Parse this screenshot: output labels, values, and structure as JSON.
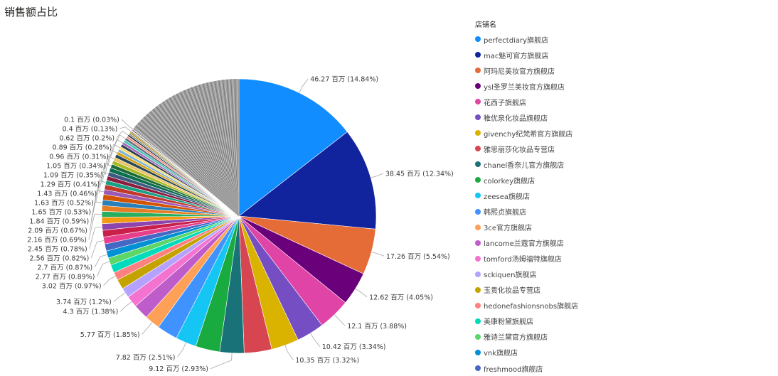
{
  "title": "销售额占比",
  "legend": {
    "title": "店铺名",
    "items": [
      {
        "label": "perfectdiary旗舰店",
        "color": "#118DFF"
      },
      {
        "label": "mac魅可官方旗舰店",
        "color": "#12239E"
      },
      {
        "label": "阿玛尼美妆官方旗舰店",
        "color": "#E66C37"
      },
      {
        "label": "ysl圣罗兰美妆官方旗舰店",
        "color": "#6B007B"
      },
      {
        "label": "花西子旗舰店",
        "color": "#E044A7"
      },
      {
        "label": "稚优泉化妆品旗舰店",
        "color": "#744EC2"
      },
      {
        "label": "givenchy纪梵希官方旗舰店",
        "color": "#D9B300"
      },
      {
        "label": "雅思丽莎化妆品专营店",
        "color": "#D64550"
      },
      {
        "label": "chanel香奈儿官方旗舰店",
        "color": "#197278"
      },
      {
        "label": "colorkey旗舰店",
        "color": "#1AAB40"
      },
      {
        "label": "zeesea旗舰店",
        "color": "#15C6F4"
      },
      {
        "label": "韩熙贞旗舰店",
        "color": "#4092FF"
      },
      {
        "label": "3ce官方旗舰店",
        "color": "#FFA058"
      },
      {
        "label": "lancome兰蔻官方旗舰店",
        "color": "#BE5DC9"
      },
      {
        "label": "tomford汤姆福特旗舰店",
        "color": "#F472D0"
      },
      {
        "label": "sckiquen旗舰店",
        "color": "#B5A1FF"
      },
      {
        "label": "玉贵化妆品专营店",
        "color": "#C4A200"
      },
      {
        "label": "hedonefashionsnobs旗舰店",
        "color": "#FF8080"
      },
      {
        "label": "美康粉黛旗舰店",
        "color": "#00DBBC"
      },
      {
        "label": "雅诗兰黛官方旗舰店",
        "color": "#5BD667"
      },
      {
        "label": "vnk旗舰店",
        "color": "#0091D5"
      },
      {
        "label": "freshmood旗舰店",
        "color": "#4668C5"
      }
    ]
  },
  "chart_data": {
    "type": "pie",
    "title": "销售额占比",
    "legend_title": "店铺名",
    "legend_position": "right",
    "unit": "百万",
    "slices": [
      {
        "name": "perfectdiary旗舰店",
        "value": 46.27,
        "percent": 14.84,
        "label": "46.27 百万 (14.84%)",
        "color": "#118DFF"
      },
      {
        "name": "mac魅可官方旗舰店",
        "value": 38.45,
        "percent": 12.34,
        "label": "38.45 百万 (12.34%)",
        "color": "#12239E"
      },
      {
        "name": "阿玛尼美妆官方旗舰店",
        "value": 17.26,
        "percent": 5.54,
        "label": "17.26 百万 (5.54%)",
        "color": "#E66C37"
      },
      {
        "name": "ysl圣罗兰美妆官方旗舰店",
        "value": 12.62,
        "percent": 4.05,
        "label": "12.62 百万 (4.05%)",
        "color": "#6B007B"
      },
      {
        "name": "花西子旗舰店",
        "value": 12.1,
        "percent": 3.88,
        "label": "12.1 百万 (3.88%)",
        "color": "#E044A7"
      },
      {
        "name": "稚优泉化妆品旗舰店",
        "value": 10.42,
        "percent": 3.34,
        "label": "10.42 百万 (3.34%)",
        "color": "#744EC2"
      },
      {
        "name": "givenchy纪梵希官方旗舰店",
        "value": 10.35,
        "percent": 3.32,
        "label": "10.35 百万 (3.32%)",
        "color": "#D9B300"
      },
      {
        "name": "雅思丽莎化妆品专营店",
        "value": 10.35,
        "percent": 3.32,
        "label": "",
        "color": "#D64550"
      },
      {
        "name": "chanel香奈儿官方旗舰店",
        "value": 9.12,
        "percent": 2.93,
        "label": "9.12 百万 (2.93%)",
        "color": "#197278"
      },
      {
        "name": "colorkey旗舰店",
        "value": 9.12,
        "percent": 2.93,
        "label": "",
        "color": "#1AAB40"
      },
      {
        "name": "zeesea旗舰店",
        "value": 7.82,
        "percent": 2.51,
        "label": "7.82 百万 (2.51%)",
        "color": "#15C6F4"
      },
      {
        "name": "韩熙贞旗舰店",
        "value": 7.82,
        "percent": 2.51,
        "label": "",
        "color": "#4092FF"
      },
      {
        "name": "3ce官方旗舰店",
        "value": 5.77,
        "percent": 1.85,
        "label": "5.77 百万 (1.85%)",
        "color": "#FFA058"
      },
      {
        "name": "lancome兰蔻官方旗舰店",
        "value": 5.77,
        "percent": 1.85,
        "label": "",
        "color": "#BE5DC9"
      },
      {
        "name": "tomford汤姆福特旗舰店",
        "value": 4.3,
        "percent": 1.38,
        "label": "4.3 百万 (1.38%)",
        "color": "#F472D0"
      },
      {
        "name": "sckiquen旗舰店",
        "value": 3.74,
        "percent": 1.2,
        "label": "3.74 百万 (1.2%)",
        "color": "#B5A1FF"
      },
      {
        "name": "玉贵化妆品专营店",
        "value": 3.74,
        "percent": 1.2,
        "label": "",
        "color": "#C4A200"
      },
      {
        "name": "hedonefashionsnobs旗舰店",
        "value": 3.02,
        "percent": 0.97,
        "label": "3.02 百万 (0.97%)",
        "color": "#FF8080"
      },
      {
        "name": "美康粉黛旗舰店",
        "value": 3.02,
        "percent": 0.97,
        "label": "",
        "color": "#00DBBC"
      },
      {
        "name": "雅诗兰黛官方旗舰店",
        "value": 2.77,
        "percent": 0.89,
        "label": "2.77 百万 (0.89%)",
        "color": "#5BD667"
      },
      {
        "name": "vnk旗舰店",
        "value": 2.7,
        "percent": 0.87,
        "label": "2.7 百万 (0.87%)",
        "color": "#0091D5"
      },
      {
        "name": "freshmood旗舰店",
        "value": 2.7,
        "percent": 0.87,
        "label": "",
        "color": "#4668C5"
      },
      {
        "name": "",
        "value": 2.56,
        "percent": 0.82,
        "label": "2.56 百万 (0.82%)",
        "color": "#E83F8C"
      },
      {
        "name": "",
        "value": 2.56,
        "percent": 0.82,
        "label": "",
        "color": "#C91F4A"
      },
      {
        "name": "",
        "value": 2.45,
        "percent": 0.78,
        "label": "2.45 百万 (0.78%)",
        "color": "#8E44AD"
      },
      {
        "name": "",
        "value": 2.45,
        "percent": 0.78,
        "label": "",
        "color": "#F39C12"
      },
      {
        "name": "",
        "value": 2.16,
        "percent": 0.69,
        "label": "2.16 百万 (0.69%)",
        "color": "#27AE60"
      },
      {
        "name": "",
        "value": 2.16,
        "percent": 0.69,
        "label": "",
        "color": "#E67E22"
      },
      {
        "name": "",
        "value": 2.09,
        "percent": 0.67,
        "label": "2.09 百万 (0.67%)",
        "color": "#2980B9"
      },
      {
        "name": "",
        "value": 2.09,
        "percent": 0.67,
        "label": "",
        "color": "#D35400"
      },
      {
        "name": "",
        "value": 1.84,
        "percent": 0.59,
        "label": "1.84 百万 (0.59%)",
        "color": "#9B59B6"
      },
      {
        "name": "",
        "value": 1.84,
        "percent": 0.59,
        "label": "",
        "color": "#C0392B"
      },
      {
        "name": "",
        "value": 1.65,
        "percent": 0.53,
        "label": "1.65 百万 (0.53%)",
        "color": "#16A085"
      },
      {
        "name": "",
        "value": 1.65,
        "percent": 0.53,
        "label": "",
        "color": "#8B1E3F"
      },
      {
        "name": "",
        "value": 1.63,
        "percent": 0.52,
        "label": "1.63 百万 (0.52%)",
        "color": "#3D5A80"
      },
      {
        "name": "",
        "value": 1.63,
        "percent": 0.52,
        "label": "",
        "color": "#0B6E4F"
      },
      {
        "name": "",
        "value": 1.43,
        "percent": 0.46,
        "label": "1.43 百万 (0.46%)",
        "color": "#1D6B34"
      },
      {
        "name": "",
        "value": 1.43,
        "percent": 0.46,
        "label": "",
        "color": "#A8B820"
      },
      {
        "name": "",
        "value": 1.29,
        "percent": 0.41,
        "label": "1.29 百万 (0.41%)",
        "color": "#E9C46A"
      },
      {
        "name": "",
        "value": 1.29,
        "percent": 0.41,
        "label": "",
        "color": "#264653"
      },
      {
        "name": "",
        "value": 1.09,
        "percent": 0.35,
        "label": "1.09 百万 (0.35%)",
        "color": "#D4A017"
      },
      {
        "name": "",
        "value": 1.09,
        "percent": 0.35,
        "label": "",
        "color": "#7FB3D5"
      },
      {
        "name": "",
        "value": 1.05,
        "percent": 0.34,
        "label": "1.05 百万 (0.34%)",
        "color": "#F7DC6F"
      },
      {
        "name": "",
        "value": 1.05,
        "percent": 0.34,
        "label": "",
        "color": "#2E4053"
      },
      {
        "name": "",
        "value": 0.96,
        "percent": 0.31,
        "label": "0.96 百万 (0.31%)",
        "color": "#A569BD"
      },
      {
        "name": "",
        "value": 0.96,
        "percent": 0.31,
        "label": "",
        "color": "#48C9B0"
      },
      {
        "name": "",
        "value": 0.89,
        "percent": 0.28,
        "label": "0.89 百万 (0.28%)",
        "color": "#5D6D7E"
      },
      {
        "name": "",
        "value": 0.89,
        "percent": 0.28,
        "label": "",
        "color": "#F1948A"
      },
      {
        "name": "",
        "value": 0.62,
        "percent": 0.2,
        "label": "0.62 百万 (0.2%)",
        "color": "#1B2631"
      },
      {
        "name": "",
        "value": 0.62,
        "percent": 0.2,
        "label": "",
        "color": "#85929E"
      },
      {
        "name": "",
        "value": 0.62,
        "percent": 0.2,
        "label": "",
        "color": "#B7950B"
      },
      {
        "name": "",
        "value": 0.4,
        "percent": 0.13,
        "label": "0.4 百万 (0.13%)",
        "color": "#566573"
      },
      {
        "name": "",
        "value": 0.4,
        "percent": 0.13,
        "label": "",
        "color": "#F5CBA7"
      },
      {
        "name": "",
        "value": 0.4,
        "percent": 0.13,
        "label": "",
        "color": "#283747"
      },
      {
        "name": "",
        "value": 0.1,
        "percent": 0.03,
        "label": "0.1 百万 (0.03%)",
        "color": "#ABB2B9"
      },
      {
        "name": "",
        "value": 0.1,
        "percent": 0.03,
        "label": "",
        "color": "#D5D8DC"
      }
    ],
    "other_value": 44.86,
    "other_color": "#9E9E9E"
  }
}
